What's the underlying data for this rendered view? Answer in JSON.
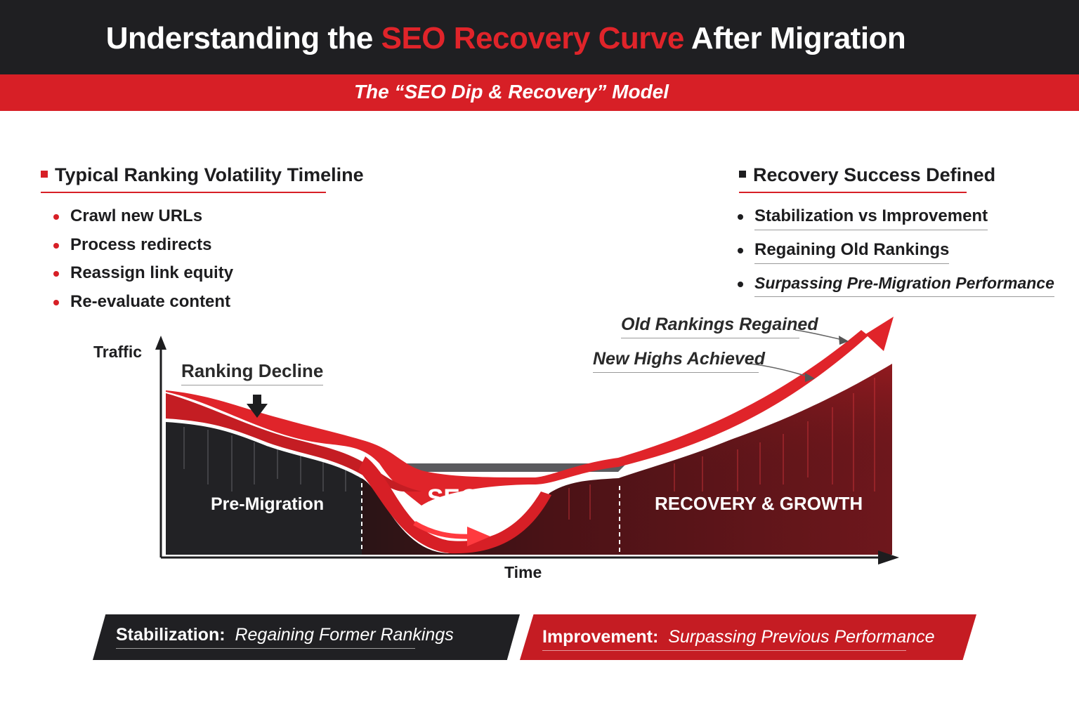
{
  "header": {
    "title_start": "Understanding the ",
    "title_accent": "SEO Recovery Curve",
    "title_end": " After Migration",
    "subtitle": "The “SEO Dip & Recovery” Model"
  },
  "left_panel": {
    "heading": "Typical Ranking Volatility Timeline",
    "items": [
      "Crawl new URLs",
      "Process redirects",
      "Reassign link equity",
      "Re-evaluate content"
    ]
  },
  "right_panel": {
    "heading": "Recovery Success Defined",
    "items": [
      "Stabilization vs Improvement",
      "Regaining Old Rankings",
      "Surpassing Pre-Migration Performance"
    ]
  },
  "diagram": {
    "y_axis_label": "Traffic",
    "x_axis_label": "Time",
    "annotation_decline": "Ranking Decline",
    "annotation_old": "Old Rankings Regained",
    "annotation_new": "New Highs Achieved",
    "phases": {
      "pre": "Pre-Migration",
      "dip": "SEO DIP",
      "growth": "RECOVERY & GROWTH"
    }
  },
  "banners": {
    "left": {
      "label": "Stabilization:",
      "text": "Regaining Former Rankings"
    },
    "right": {
      "label": "Improvement:",
      "text": "Surpassing Previous Performance"
    }
  },
  "colors": {
    "accent": "#d71f26",
    "dark": "#1f1f22",
    "growth_fill": "#5a1518"
  }
}
